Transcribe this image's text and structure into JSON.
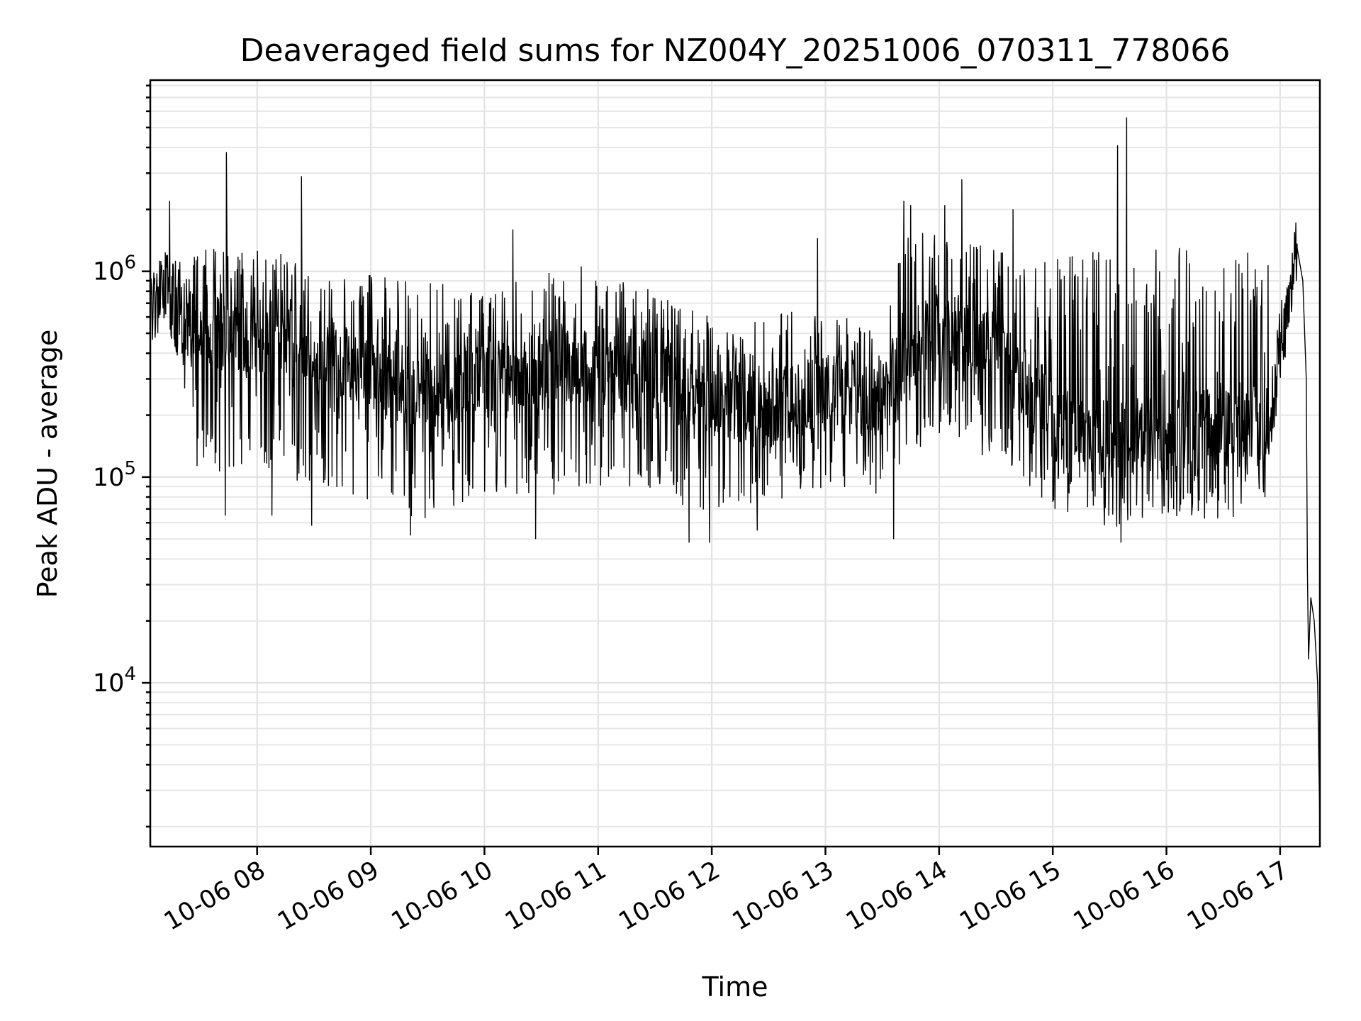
{
  "chart_data": {
    "type": "line",
    "title": "Deaveraged field sums for NZ004Y_20251006_070311_778066",
    "xlabel": "Time",
    "ylabel": "Peak ADU - average",
    "yscale": "log",
    "ylim": [
      1600,
      8500000
    ],
    "xlim_hours": [
      7.06,
      17.35
    ],
    "grid": true,
    "x_ticks": [
      {
        "hour": 8,
        "label": "10-06 08"
      },
      {
        "hour": 9,
        "label": "10-06 09"
      },
      {
        "hour": 10,
        "label": "10-06 10"
      },
      {
        "hour": 11,
        "label": "10-06 11"
      },
      {
        "hour": 12,
        "label": "10-06 12"
      },
      {
        "hour": 13,
        "label": "10-06 13"
      },
      {
        "hour": 14,
        "label": "10-06 14"
      },
      {
        "hour": 15,
        "label": "10-06 15"
      },
      {
        "hour": 16,
        "label": "10-06 16"
      },
      {
        "hour": 17,
        "label": "10-06 17"
      }
    ],
    "y_ticks": [
      {
        "value": 10000,
        "base": "10",
        "exp": "4"
      },
      {
        "value": 100000,
        "base": "10",
        "exp": "5"
      },
      {
        "value": 1000000,
        "base": "10",
        "exp": "6"
      }
    ],
    "series": [
      {
        "name": "field sums",
        "color": "#000000",
        "envelope": [
          {
            "t": 7.06,
            "base": 650000,
            "low": 500000,
            "high": 900000
          },
          {
            "t": 7.2,
            "base": 800000,
            "low": 600000,
            "high": 1300000
          },
          {
            "t": 7.3,
            "base": 600000,
            "low": 350000,
            "high": 1100000
          },
          {
            "t": 7.5,
            "base": 500000,
            "low": 90000,
            "high": 1300000
          },
          {
            "t": 8.0,
            "base": 500000,
            "low": 110000,
            "high": 1300000
          },
          {
            "t": 8.5,
            "base": 420000,
            "low": 90000,
            "high": 1200000
          },
          {
            "t": 9.0,
            "base": 320000,
            "low": 75000,
            "high": 1000000
          },
          {
            "t": 9.5,
            "base": 260000,
            "low": 60000,
            "high": 900000
          },
          {
            "t": 10.0,
            "base": 300000,
            "low": 85000,
            "high": 800000
          },
          {
            "t": 10.5,
            "base": 330000,
            "low": 80000,
            "high": 1000000
          },
          {
            "t": 11.0,
            "base": 350000,
            "low": 90000,
            "high": 1100000
          },
          {
            "t": 11.5,
            "base": 300000,
            "low": 85000,
            "high": 800000
          },
          {
            "t": 12.0,
            "base": 220000,
            "low": 60000,
            "high": 600000
          },
          {
            "t": 12.5,
            "base": 210000,
            "low": 75000,
            "high": 600000
          },
          {
            "t": 13.0,
            "base": 260000,
            "low": 80000,
            "high": 700000
          },
          {
            "t": 13.5,
            "base": 250000,
            "low": 80000,
            "high": 500000
          },
          {
            "t": 13.7,
            "base": 380000,
            "low": 120000,
            "high": 1600000
          },
          {
            "t": 14.0,
            "base": 550000,
            "low": 150000,
            "high": 1500000
          },
          {
            "t": 14.5,
            "base": 420000,
            "low": 120000,
            "high": 1300000
          },
          {
            "t": 15.0,
            "base": 180000,
            "low": 70000,
            "high": 1200000
          },
          {
            "t": 15.5,
            "base": 150000,
            "low": 55000,
            "high": 1300000
          },
          {
            "t": 16.0,
            "base": 170000,
            "low": 65000,
            "high": 1300000
          },
          {
            "t": 16.5,
            "base": 170000,
            "low": 60000,
            "high": 1300000
          },
          {
            "t": 16.9,
            "base": 180000,
            "low": 80000,
            "high": 1300000
          },
          {
            "t": 17.0,
            "base": 420000,
            "low": 330000,
            "high": 550000
          },
          {
            "t": 17.15,
            "base": 1300000,
            "low": 1100000,
            "high": 1400000
          }
        ],
        "tail": [
          {
            "t": 17.15,
            "v": 1300000
          },
          {
            "t": 17.2,
            "v": 900000
          },
          {
            "t": 17.23,
            "v": 300000
          },
          {
            "t": 17.24,
            "v": 35000
          },
          {
            "t": 17.25,
            "v": 13000
          },
          {
            "t": 17.27,
            "v": 26000
          },
          {
            "t": 17.3,
            "v": 20000
          },
          {
            "t": 17.33,
            "v": 10000
          },
          {
            "t": 17.35,
            "v": 2000
          }
        ],
        "spikes": [
          {
            "t": 7.23,
            "v": 2200000
          },
          {
            "t": 7.35,
            "v": 350000
          },
          {
            "t": 7.73,
            "v": 3800000
          },
          {
            "t": 7.72,
            "v": 65000
          },
          {
            "t": 8.13,
            "v": 65000
          },
          {
            "t": 8.39,
            "v": 2900000
          },
          {
            "t": 8.48,
            "v": 58000
          },
          {
            "t": 9.35,
            "v": 52000
          },
          {
            "t": 10.25,
            "v": 1600000
          },
          {
            "t": 10.45,
            "v": 50000
          },
          {
            "t": 11.8,
            "v": 48000
          },
          {
            "t": 11.98,
            "v": 48000
          },
          {
            "t": 12.4,
            "v": 55000
          },
          {
            "t": 12.93,
            "v": 1450000
          },
          {
            "t": 13.6,
            "v": 50000
          },
          {
            "t": 13.69,
            "v": 2200000
          },
          {
            "t": 13.75,
            "v": 2100000
          },
          {
            "t": 14.05,
            "v": 2100000
          },
          {
            "t": 14.2,
            "v": 2800000
          },
          {
            "t": 14.65,
            "v": 2000000
          },
          {
            "t": 15.57,
            "v": 4100000
          },
          {
            "t": 15.6,
            "v": 48000
          },
          {
            "t": 15.65,
            "v": 5600000
          }
        ]
      }
    ]
  }
}
